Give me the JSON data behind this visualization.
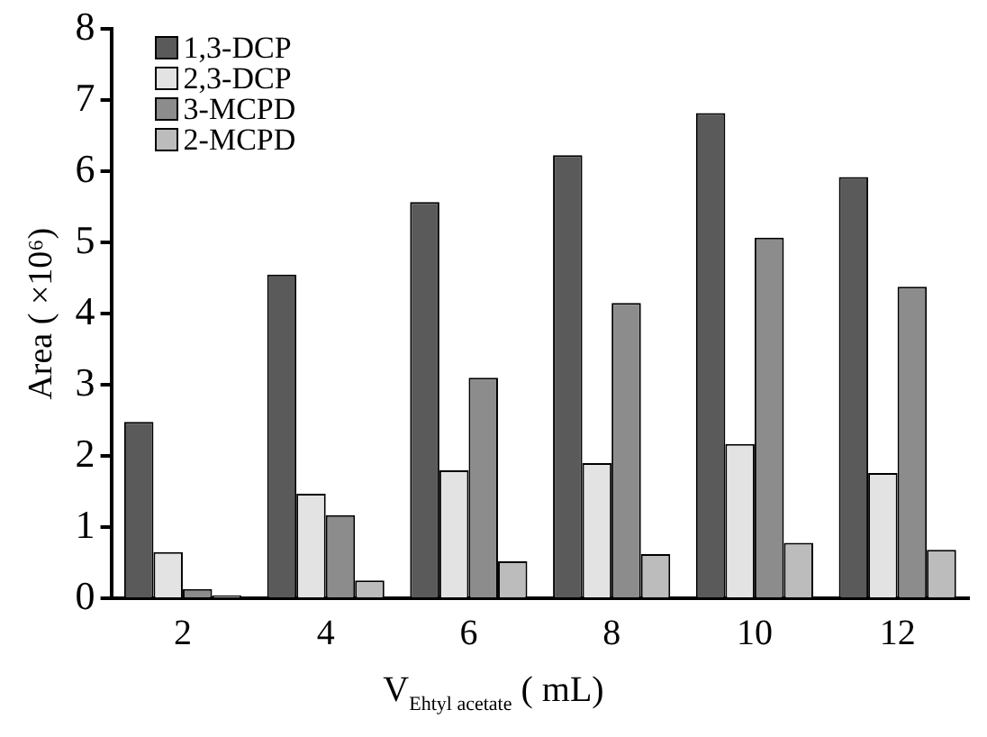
{
  "chart_data": {
    "type": "bar",
    "xlabel": "V$_{Ehtyl  acetate}$ ( mL)",
    "ylabel": "Area ( ×10⁶)",
    "categories": [
      "2",
      "4",
      "6",
      "8",
      "10",
      "12"
    ],
    "series": [
      {
        "name": "1,3-DCP",
        "color": "#5a5a5a",
        "values": [
          2.48,
          4.55,
          5.57,
          6.23,
          6.82,
          5.92
        ]
      },
      {
        "name": "2,3-DCP",
        "color": "#e3e3e3",
        "values": [
          0.65,
          1.47,
          1.8,
          1.9,
          2.17,
          1.76
        ]
      },
      {
        "name": "3-MCPD",
        "color": "#8c8c8c",
        "values": [
          0.13,
          1.17,
          3.1,
          4.15,
          5.07,
          4.38
        ]
      },
      {
        "name": "2-MCPD",
        "color": "#bcbcbc",
        "values": [
          0.04,
          0.25,
          0.52,
          0.62,
          0.78,
          0.68
        ]
      }
    ],
    "ylim": [
      0,
      8
    ],
    "yticks": [
      0,
      1,
      2,
      3,
      4,
      5,
      6,
      7,
      8
    ],
    "grid": false,
    "legend": "top left"
  }
}
